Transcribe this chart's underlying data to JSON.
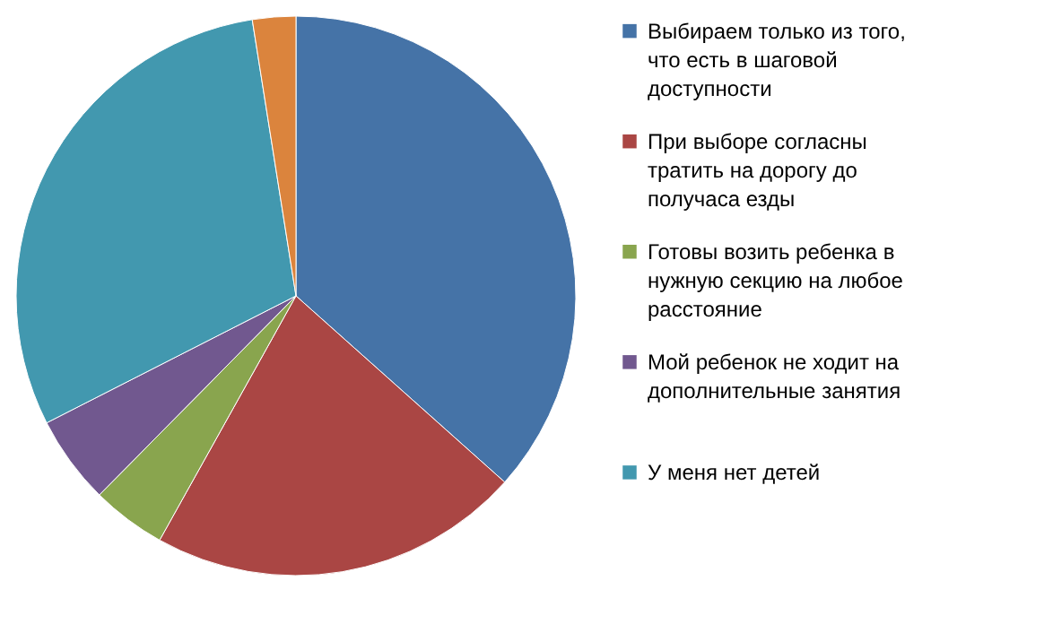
{
  "chart_data": {
    "type": "pie",
    "categories": [
      "Выбираем только из того, что есть в шаговой доступности",
      "При выборе согласны тратить на дорогу до получаса езды",
      "Готовы возить ребенка в нужную секцию на любое расстояние",
      "Мой ребенок не ходит на дополнительные занятия",
      "У меня нет детей",
      null
    ],
    "values": [
      36.6,
      21.5,
      4.3,
      5.1,
      30.0,
      2.5
    ],
    "colors": [
      "#4573a7",
      "#aa4644",
      "#89a54e",
      "#71588f",
      "#4298af",
      "#db843d"
    ],
    "legend": "right"
  }
}
